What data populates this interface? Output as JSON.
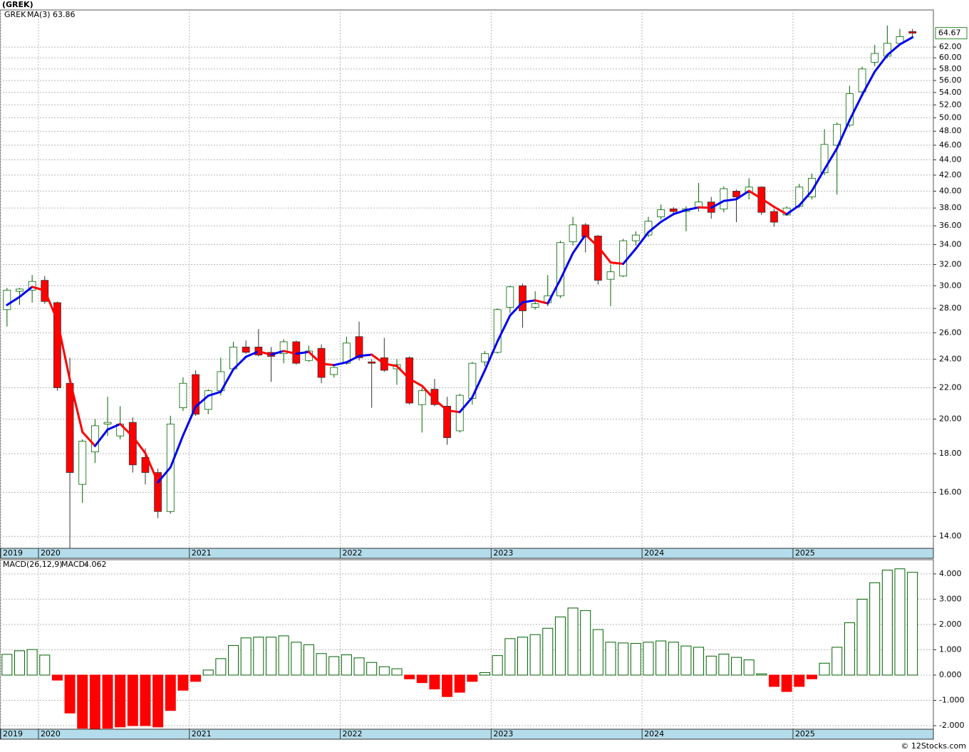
{
  "chart_data": [
    {
      "type": "candlestick",
      "title": "(GREK)",
      "ticker": "GREK",
      "categories": [
        "2019",
        null,
        null,
        "2020",
        null,
        null,
        null,
        null,
        null,
        null,
        null,
        null,
        null,
        null,
        null,
        "2021",
        null,
        null,
        null,
        null,
        null,
        null,
        null,
        null,
        null,
        null,
        null,
        "2022",
        null,
        null,
        null,
        null,
        null,
        null,
        null,
        null,
        null,
        null,
        null,
        "2023",
        null,
        null,
        null,
        null,
        null,
        null,
        null,
        null,
        null,
        null,
        null,
        "2024",
        null,
        null,
        null,
        null,
        null,
        null,
        null,
        null,
        null,
        null,
        null,
        "2025",
        null,
        null,
        null,
        null,
        null,
        null,
        null,
        null,
        null
      ],
      "open": [
        27.9,
        29.5,
        29.6,
        30.5,
        28.5,
        22.3,
        16.4,
        18.1,
        19.7,
        19.0,
        19.8,
        17.8,
        17.0,
        15.1,
        20.7,
        22.9,
        20.6,
        21.8,
        23.3,
        24.9,
        24.9,
        24.5,
        24.4,
        25.3,
        23.9,
        24.8,
        22.9,
        23.7,
        25.7,
        23.8,
        24.1,
        23.3,
        24.1,
        20.9,
        21.9,
        20.8,
        19.3,
        21.3,
        23.8,
        24.5,
        28.1,
        30.0,
        28.1,
        28.5,
        29.1,
        34.3,
        36.1,
        34.9,
        30.6,
        30.9,
        34.4,
        35.0,
        37.0,
        37.9,
        37.6,
        38.0,
        38.7,
        37.9,
        40.0,
        39.8,
        40.5,
        37.6,
        37.2,
        38.2,
        39.3,
        42.3,
        46.0,
        48.9,
        54.1,
        59.2,
        60.3,
        62.7,
        65.0
      ],
      "high": [
        29.8,
        29.8,
        31.0,
        30.9,
        28.6,
        24.1,
        18.8,
        20.0,
        21.4,
        20.8,
        20.1,
        18.3,
        17.2,
        20.2,
        22.7,
        23.2,
        21.9,
        24.1,
        25.3,
        25.4,
        26.3,
        24.9,
        25.5,
        25.4,
        25.0,
        25.1,
        23.6,
        25.7,
        26.9,
        24.0,
        25.6,
        24.0,
        24.2,
        22.0,
        22.6,
        21.4,
        21.6,
        23.8,
        24.6,
        28.0,
        30.0,
        30.2,
        29.5,
        31.0,
        34.4,
        37.0,
        36.3,
        35.0,
        32.0,
        34.6,
        35.4,
        37.0,
        38.4,
        38.1,
        38.2,
        41.0,
        39.3,
        40.6,
        40.2,
        41.6,
        40.6,
        37.9,
        38.2,
        40.9,
        42.2,
        48.3,
        49.3,
        55.1,
        58.4,
        62.4,
        66.2,
        65.5,
        65.5
      ],
      "low": [
        26.5,
        28.3,
        28.5,
        28.4,
        21.8,
        13.5,
        15.5,
        17.5,
        19.0,
        18.8,
        17.0,
        16.4,
        14.8,
        15.0,
        20.5,
        20.2,
        20.3,
        21.5,
        23.2,
        24.4,
        24.2,
        22.4,
        23.7,
        23.6,
        23.8,
        22.3,
        22.7,
        23.6,
        23.9,
        20.7,
        23.1,
        22.2,
        20.9,
        19.2,
        20.8,
        18.5,
        19.2,
        20.9,
        23.5,
        24.4,
        27.6,
        26.4,
        27.9,
        28.2,
        28.9,
        33.9,
        33.2,
        30.1,
        28.2,
        30.8,
        33.9,
        34.8,
        36.7,
        37.3,
        35.4,
        37.6,
        36.8,
        37.5,
        36.4,
        39.0,
        37.2,
        35.9,
        37.1,
        38.0,
        39.0,
        42.0,
        39.6,
        48.6,
        53.9,
        58.5,
        59.9,
        62.4,
        64.0
      ],
      "close": [
        29.6,
        29.7,
        30.4,
        28.6,
        22.0,
        17.0,
        18.7,
        19.6,
        19.8,
        19.7,
        17.4,
        17.0,
        15.1,
        19.7,
        22.3,
        20.3,
        21.8,
        23.1,
        24.9,
        24.5,
        24.3,
        24.2,
        25.3,
        23.7,
        24.6,
        22.7,
        23.4,
        25.2,
        24.1,
        23.7,
        23.2,
        23.6,
        21.0,
        21.8,
        20.9,
        18.9,
        21.5,
        23.7,
        24.4,
        27.9,
        29.9,
        27.8,
        28.4,
        29.1,
        34.2,
        36.1,
        34.8,
        30.5,
        31.3,
        34.4,
        35.0,
        36.5,
        37.8,
        37.6,
        37.9,
        38.7,
        37.5,
        40.3,
        39.3,
        40.5,
        37.5,
        36.4,
        38.0,
        40.5,
        41.6,
        46.1,
        49.0,
        53.8,
        58.0,
        60.8,
        62.7,
        64.0,
        64.67
      ],
      "up_color": "#ffffff",
      "down_color": "#ff0000",
      "edge_color": "#006400",
      "series": [
        {
          "name": "MA(3)",
          "up_color": "#0000ee",
          "down_color": "#ff0000",
          "values": [
            28.3,
            29.0,
            29.9,
            29.57,
            27.0,
            22.53,
            19.23,
            18.43,
            19.37,
            19.7,
            18.97,
            18.03,
            16.5,
            17.27,
            19.03,
            20.77,
            21.47,
            21.73,
            23.27,
            24.17,
            24.57,
            24.33,
            24.6,
            24.4,
            24.53,
            23.67,
            23.57,
            23.77,
            24.23,
            24.33,
            23.67,
            23.5,
            22.6,
            22.13,
            21.23,
            20.53,
            20.43,
            21.37,
            23.2,
            25.33,
            27.4,
            28.53,
            28.7,
            28.43,
            30.57,
            33.13,
            35.03,
            33.8,
            32.2,
            32.07,
            33.57,
            35.3,
            36.43,
            37.3,
            37.77,
            38.07,
            38.03,
            38.83,
            39.03,
            40.03,
            39.1,
            38.13,
            37.3,
            38.3,
            40.03,
            42.73,
            45.57,
            49.63,
            53.6,
            57.53,
            60.5,
            62.5,
            63.86
          ]
        }
      ],
      "ylim": [
        13.5,
        69.4
      ],
      "log_scale": true,
      "grid": true,
      "yticks": [
        {
          "value": 14,
          "label": "14.00"
        },
        {
          "value": 16,
          "label": "16.00"
        },
        {
          "value": 18,
          "label": "18.00"
        },
        {
          "value": 20,
          "label": "20.00"
        },
        {
          "value": 22,
          "label": "22.00"
        },
        {
          "value": 24,
          "label": "24.00"
        },
        {
          "value": 26,
          "label": "26.00"
        },
        {
          "value": 28,
          "label": "28.00"
        },
        {
          "value": 30,
          "label": "30.00"
        },
        {
          "value": 32,
          "label": "32.00"
        },
        {
          "value": 34,
          "label": "34.00"
        },
        {
          "value": 36,
          "label": "36.00"
        },
        {
          "value": 38,
          "label": "38.00"
        },
        {
          "value": 40,
          "label": "40.00"
        },
        {
          "value": 42,
          "label": "42.00"
        },
        {
          "value": 44,
          "label": "44.00"
        },
        {
          "value": 46,
          "label": "46.00"
        },
        {
          "value": 48,
          "label": "48.00"
        },
        {
          "value": 50,
          "label": "50.00"
        },
        {
          "value": 52,
          "label": "52.00"
        },
        {
          "value": 54,
          "label": "54.00"
        },
        {
          "value": 56,
          "label": "56.00"
        },
        {
          "value": 58,
          "label": "58.00"
        },
        {
          "value": 60,
          "label": "60.00"
        },
        {
          "value": 62,
          "label": "62.00"
        }
      ]
    },
    {
      "type": "bar",
      "title": "MACD(26,12,9)",
      "categories": [
        "2019",
        null,
        null,
        "2020",
        null,
        null,
        null,
        null,
        null,
        null,
        null,
        null,
        null,
        null,
        null,
        "2021",
        null,
        null,
        null,
        null,
        null,
        null,
        null,
        null,
        null,
        null,
        null,
        "2022",
        null,
        null,
        null,
        null,
        null,
        null,
        null,
        null,
        null,
        null,
        null,
        "2023",
        null,
        null,
        null,
        null,
        null,
        null,
        null,
        null,
        null,
        null,
        null,
        "2024",
        null,
        null,
        null,
        null,
        null,
        null,
        null,
        null,
        null,
        null,
        null,
        "2025",
        null,
        null,
        null,
        null,
        null,
        null,
        null,
        null,
        null
      ],
      "series": [
        {
          "name": "MACD:",
          "up_color": "#ffffff",
          "down_color": "#ff0000",
          "edge_color": "#006400",
          "values": [
            0.82,
            0.96,
            1.01,
            0.79,
            -0.2,
            -1.5,
            -2.1,
            -2.15,
            -2.1,
            -2.05,
            -2.0,
            -2.0,
            -2.05,
            -1.4,
            -0.6,
            -0.25,
            0.2,
            0.65,
            1.17,
            1.47,
            1.5,
            1.5,
            1.55,
            1.3,
            1.2,
            0.85,
            0.73,
            0.8,
            0.68,
            0.5,
            0.33,
            0.25,
            -0.15,
            -0.3,
            -0.55,
            -0.85,
            -0.68,
            -0.25,
            0.1,
            0.77,
            1.44,
            1.5,
            1.6,
            1.85,
            2.3,
            2.65,
            2.55,
            1.8,
            1.3,
            1.27,
            1.25,
            1.3,
            1.35,
            1.3,
            1.15,
            1.1,
            0.75,
            0.83,
            0.7,
            0.6,
            0.05,
            -0.45,
            -0.65,
            -0.45,
            -0.15,
            0.47,
            1.1,
            2.07,
            3.0,
            3.65,
            4.15,
            4.2,
            4.062
          ]
        }
      ],
      "ylim": [
        -2.14,
        4.56
      ],
      "grid": true,
      "yticks": [
        {
          "value": -2,
          "label": "-2.000"
        },
        {
          "value": -1,
          "label": "-1.000"
        },
        {
          "value": 0,
          "label": "0.000"
        },
        {
          "value": 1,
          "label": "1.000"
        },
        {
          "value": 2,
          "label": "2.000"
        },
        {
          "value": 3,
          "label": "3.000"
        },
        {
          "value": 4,
          "label": "4.000"
        }
      ]
    }
  ],
  "footer": "© 12Stocks.com"
}
